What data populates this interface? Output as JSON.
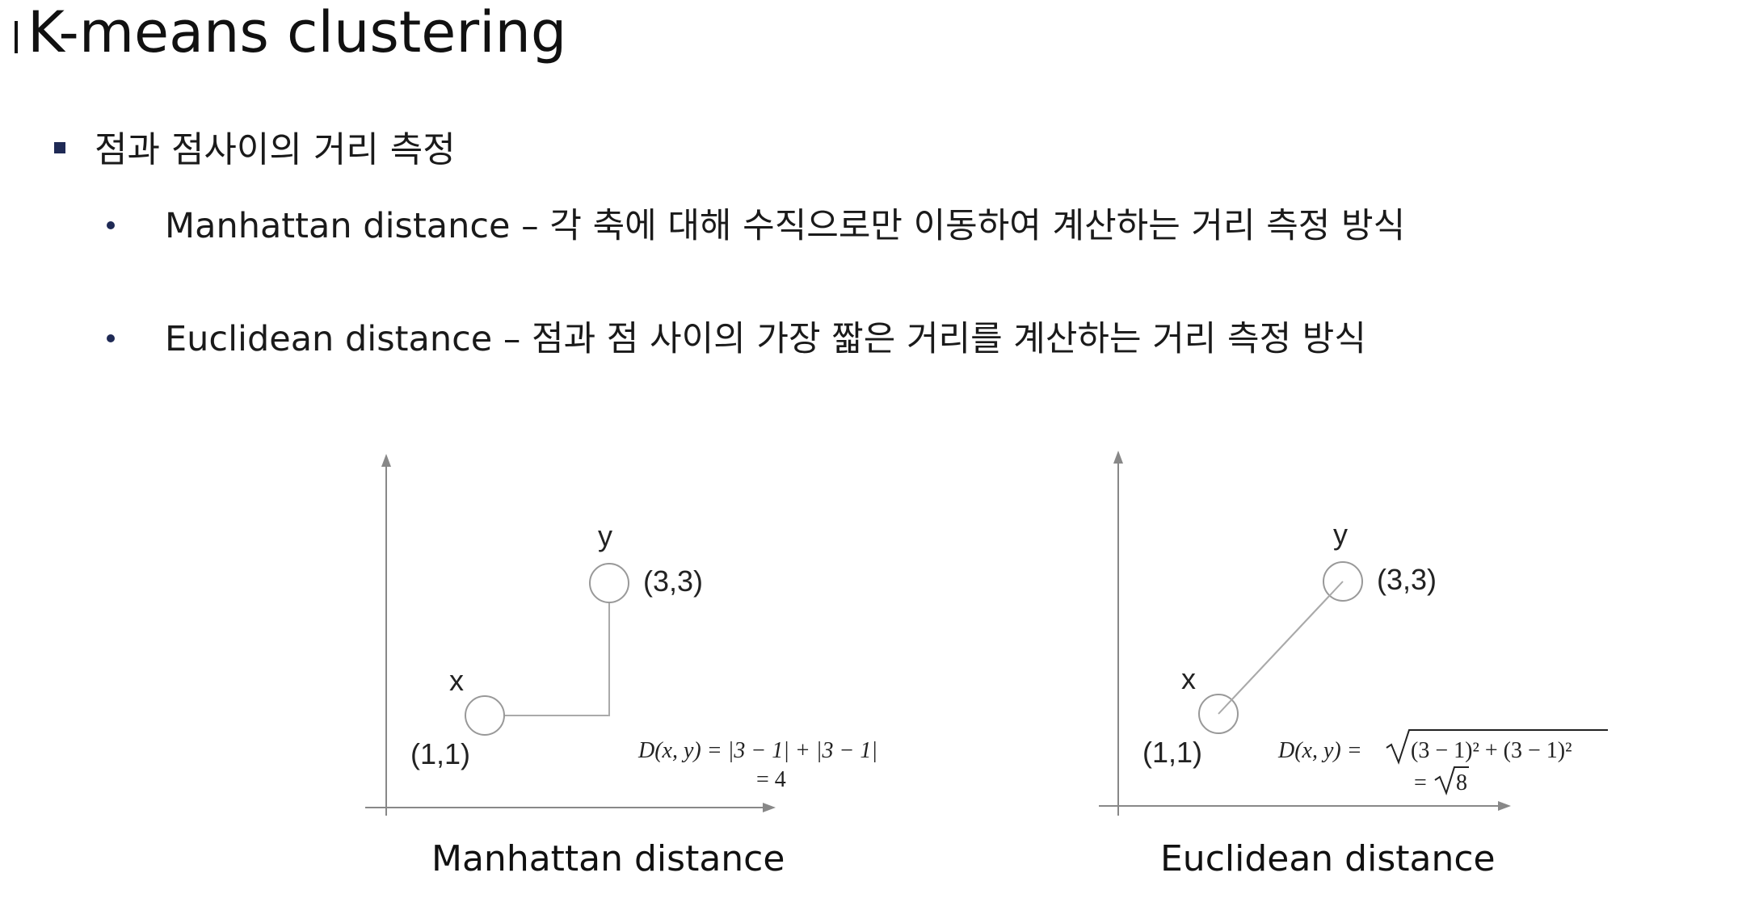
{
  "page": {
    "title": "K-means clustering"
  },
  "content": {
    "bullet_main": "점과 점사이의 거리 측정",
    "bullets": [
      "Manhattan distance – 각 축에 대해 수직으로만 이동하여 계산하는 거리 측정 방식",
      "Euclidean distance – 점과 점 사이의 가장 짧은 거리를 계산하는 거리 측정 방식"
    ]
  },
  "diagrams": {
    "manhattan": {
      "point_x_name": "x",
      "point_x_coord": "(1,1)",
      "point_y_name": "y",
      "point_y_coord": "(3,3)",
      "formula_line1": "D(x, y) = |3 − 1| + |3 − 1|",
      "formula_line2": "= 4",
      "caption": "Manhattan distance"
    },
    "euclidean": {
      "point_x_name": "x",
      "point_x_coord": "(1,1)",
      "point_y_name": "y",
      "point_y_coord": "(3,3)",
      "formula_prefix": "D(x, y) =",
      "formula_radicand": "(3 − 1)² + (3 − 1)²",
      "formula_line2_eq": "=",
      "formula_line2_radicand": "8",
      "caption": "Euclidean distance"
    }
  }
}
